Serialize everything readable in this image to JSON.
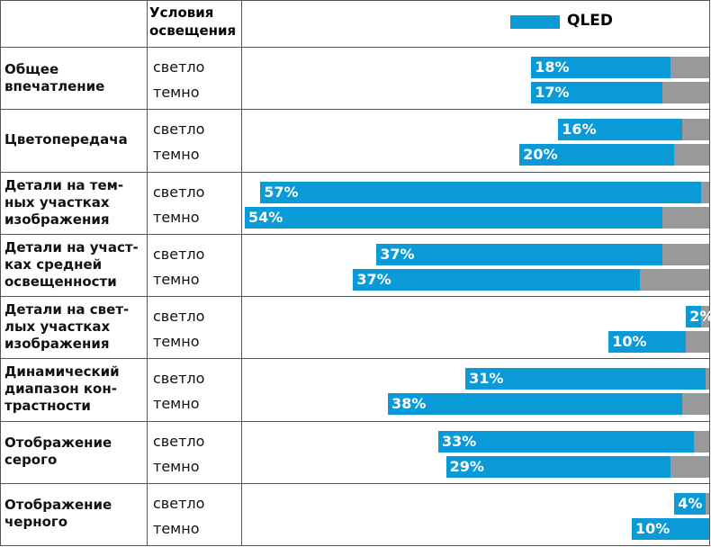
{
  "chart_data": {
    "type": "bar",
    "condition_header": "Условия освещения",
    "groups": [
      "Общее\nвпечатление",
      "Цветопередача",
      "Детали на тем-\nных участках\nизображения",
      "Детали на участ-\nках средней\nосвещенности",
      "Детали на свет-\nлых участках\nизображения",
      "Динамический\nдиапазон кон-\nтрастности",
      "Отображение\nсерого",
      "Отображение\nчерного"
    ],
    "conditions": [
      "светло",
      "темно",
      "светло",
      "темно",
      "светло",
      "темно",
      "светло",
      "темно",
      "светло",
      "темно",
      "светло",
      "темно",
      "светло",
      "темно",
      "светло",
      "темно"
    ],
    "series": [
      {
        "name": "QLED",
        "color": "#0a9ad8",
        "values": [
          18,
          17,
          16,
          20,
          57,
          54,
          37,
          37,
          2,
          10,
          31,
          38,
          33,
          29,
          4,
          10
        ],
        "value_labels": [
          "18%",
          "17%",
          "16%",
          "20%",
          "57%",
          "54%",
          "37%",
          "37%",
          "2%",
          "10%",
          "31%",
          "38%",
          "33%",
          "29%",
          "4%",
          "10%"
        ]
      },
      {
        "color": "#999999",
        "values": [
          5,
          6,
          3.5,
          4.5,
          1,
          6,
          6,
          9,
          1,
          3,
          0.5,
          3.5,
          2,
          5,
          0.5,
          0
        ]
      }
    ]
  }
}
